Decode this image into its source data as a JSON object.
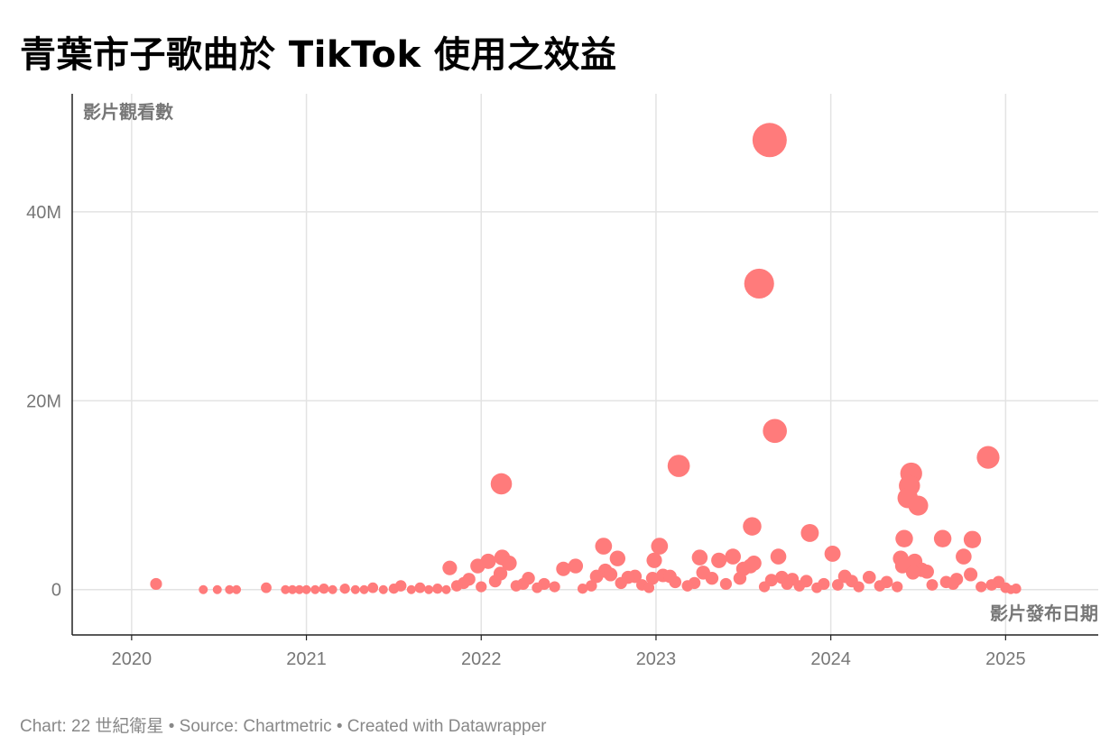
{
  "title": "青葉市子歌曲於 TikTok 使用之效益",
  "footer": "Chart: 22 世紀衛星 • Source: Chartmetric • Created with Datawrapper",
  "colors": {
    "point": "#ff7b7b",
    "grid": "#e3e3e3",
    "axis": "#222222",
    "text": "#777777"
  },
  "chart_data": {
    "type": "scatter",
    "title": "青葉市子歌曲於 TikTok 使用之效益",
    "xlabel": "影片發布日期",
    "ylabel": "影片觀看數",
    "x_ticks": [
      "2020",
      "2021",
      "2022",
      "2023",
      "2024",
      "2025"
    ],
    "y_ticks": [
      {
        "value": 0,
        "label": "0"
      },
      {
        "value": 20000000,
        "label": "20M"
      },
      {
        "value": 40000000,
        "label": "40M"
      }
    ],
    "xlim": [
      2019.66,
      2025.53
    ],
    "ylim": [
      -4800000,
      52500000
    ],
    "grid": true,
    "size_encodes": "views",
    "points": [
      {
        "x": 2020.14,
        "y": 600000
      },
      {
        "x": 2020.41,
        "y": 0
      },
      {
        "x": 2020.49,
        "y": 0
      },
      {
        "x": 2020.56,
        "y": 0
      },
      {
        "x": 2020.6,
        "y": 0
      },
      {
        "x": 2020.77,
        "y": 200000
      },
      {
        "x": 2020.88,
        "y": 0
      },
      {
        "x": 2020.92,
        "y": 0
      },
      {
        "x": 2020.96,
        "y": 0
      },
      {
        "x": 2021.0,
        "y": 0
      },
      {
        "x": 2021.05,
        "y": 0
      },
      {
        "x": 2021.1,
        "y": 100000
      },
      {
        "x": 2021.15,
        "y": 0
      },
      {
        "x": 2021.22,
        "y": 100000
      },
      {
        "x": 2021.28,
        "y": 0
      },
      {
        "x": 2021.33,
        "y": 0
      },
      {
        "x": 2021.38,
        "y": 200000
      },
      {
        "x": 2021.44,
        "y": 0
      },
      {
        "x": 2021.5,
        "y": 100000
      },
      {
        "x": 2021.54,
        "y": 400000
      },
      {
        "x": 2021.6,
        "y": 0
      },
      {
        "x": 2021.65,
        "y": 200000
      },
      {
        "x": 2021.7,
        "y": 0
      },
      {
        "x": 2021.75,
        "y": 100000
      },
      {
        "x": 2021.8,
        "y": 0
      },
      {
        "x": 2021.82,
        "y": 2300000
      },
      {
        "x": 2021.86,
        "y": 400000
      },
      {
        "x": 2021.9,
        "y": 700000
      },
      {
        "x": 2021.93,
        "y": 1100000
      },
      {
        "x": 2021.98,
        "y": 2500000
      },
      {
        "x": 2022.0,
        "y": 300000
      },
      {
        "x": 2022.04,
        "y": 3000000
      },
      {
        "x": 2022.08,
        "y": 900000
      },
      {
        "x": 2022.11,
        "y": 1700000
      },
      {
        "x": 2022.115,
        "y": 11200000
      },
      {
        "x": 2022.12,
        "y": 3400000
      },
      {
        "x": 2022.16,
        "y": 2800000
      },
      {
        "x": 2022.2,
        "y": 400000
      },
      {
        "x": 2022.24,
        "y": 600000
      },
      {
        "x": 2022.27,
        "y": 1200000
      },
      {
        "x": 2022.32,
        "y": 200000
      },
      {
        "x": 2022.36,
        "y": 600000
      },
      {
        "x": 2022.42,
        "y": 300000
      },
      {
        "x": 2022.47,
        "y": 2200000
      },
      {
        "x": 2022.54,
        "y": 2500000
      },
      {
        "x": 2022.58,
        "y": 100000
      },
      {
        "x": 2022.63,
        "y": 400000
      },
      {
        "x": 2022.66,
        "y": 1400000
      },
      {
        "x": 2022.7,
        "y": 4600000
      },
      {
        "x": 2022.71,
        "y": 2000000
      },
      {
        "x": 2022.74,
        "y": 1600000
      },
      {
        "x": 2022.78,
        "y": 3300000
      },
      {
        "x": 2022.8,
        "y": 700000
      },
      {
        "x": 2022.84,
        "y": 1300000
      },
      {
        "x": 2022.88,
        "y": 1400000
      },
      {
        "x": 2022.92,
        "y": 500000
      },
      {
        "x": 2022.96,
        "y": 200000
      },
      {
        "x": 2022.98,
        "y": 1200000
      },
      {
        "x": 2022.99,
        "y": 3100000
      },
      {
        "x": 2023.02,
        "y": 4600000
      },
      {
        "x": 2023.04,
        "y": 1500000
      },
      {
        "x": 2023.08,
        "y": 1400000
      },
      {
        "x": 2023.11,
        "y": 800000
      },
      {
        "x": 2023.13,
        "y": 13100000
      },
      {
        "x": 2023.18,
        "y": 400000
      },
      {
        "x": 2023.22,
        "y": 700000
      },
      {
        "x": 2023.25,
        "y": 3400000
      },
      {
        "x": 2023.27,
        "y": 1800000
      },
      {
        "x": 2023.32,
        "y": 1200000
      },
      {
        "x": 2023.36,
        "y": 3100000
      },
      {
        "x": 2023.4,
        "y": 600000
      },
      {
        "x": 2023.44,
        "y": 3500000
      },
      {
        "x": 2023.48,
        "y": 1200000
      },
      {
        "x": 2023.5,
        "y": 2200000
      },
      {
        "x": 2023.54,
        "y": 2500000
      },
      {
        "x": 2023.55,
        "y": 6700000
      },
      {
        "x": 2023.56,
        "y": 2800000
      },
      {
        "x": 2023.59,
        "y": 32400000
      },
      {
        "x": 2023.62,
        "y": 300000
      },
      {
        "x": 2023.65,
        "y": 47600000
      },
      {
        "x": 2023.66,
        "y": 1000000
      },
      {
        "x": 2023.68,
        "y": 16800000
      },
      {
        "x": 2023.7,
        "y": 3500000
      },
      {
        "x": 2023.72,
        "y": 1300000
      },
      {
        "x": 2023.75,
        "y": 600000
      },
      {
        "x": 2023.78,
        "y": 1100000
      },
      {
        "x": 2023.82,
        "y": 400000
      },
      {
        "x": 2023.86,
        "y": 900000
      },
      {
        "x": 2023.88,
        "y": 6000000
      },
      {
        "x": 2023.92,
        "y": 200000
      },
      {
        "x": 2023.96,
        "y": 600000
      },
      {
        "x": 2024.01,
        "y": 3800000
      },
      {
        "x": 2024.04,
        "y": 500000
      },
      {
        "x": 2024.08,
        "y": 1400000
      },
      {
        "x": 2024.12,
        "y": 900000
      },
      {
        "x": 2024.16,
        "y": 300000
      },
      {
        "x": 2024.22,
        "y": 1300000
      },
      {
        "x": 2024.28,
        "y": 400000
      },
      {
        "x": 2024.32,
        "y": 800000
      },
      {
        "x": 2024.38,
        "y": 300000
      },
      {
        "x": 2024.4,
        "y": 3300000
      },
      {
        "x": 2024.41,
        "y": 2500000
      },
      {
        "x": 2024.42,
        "y": 5400000
      },
      {
        "x": 2024.44,
        "y": 9700000
      },
      {
        "x": 2024.45,
        "y": 11000000
      },
      {
        "x": 2024.46,
        "y": 12300000
      },
      {
        "x": 2024.47,
        "y": 1800000
      },
      {
        "x": 2024.48,
        "y": 3000000
      },
      {
        "x": 2024.5,
        "y": 8900000
      },
      {
        "x": 2024.52,
        "y": 2100000
      },
      {
        "x": 2024.55,
        "y": 1900000
      },
      {
        "x": 2024.58,
        "y": 500000
      },
      {
        "x": 2024.64,
        "y": 5400000
      },
      {
        "x": 2024.66,
        "y": 800000
      },
      {
        "x": 2024.7,
        "y": 600000
      },
      {
        "x": 2024.72,
        "y": 1100000
      },
      {
        "x": 2024.76,
        "y": 3500000
      },
      {
        "x": 2024.8,
        "y": 1600000
      },
      {
        "x": 2024.81,
        "y": 5300000
      },
      {
        "x": 2024.86,
        "y": 300000
      },
      {
        "x": 2024.9,
        "y": 14000000
      },
      {
        "x": 2024.92,
        "y": 500000
      },
      {
        "x": 2024.96,
        "y": 800000
      },
      {
        "x": 2025.0,
        "y": 200000
      },
      {
        "x": 2025.03,
        "y": 0
      },
      {
        "x": 2025.06,
        "y": 100000
      }
    ]
  }
}
